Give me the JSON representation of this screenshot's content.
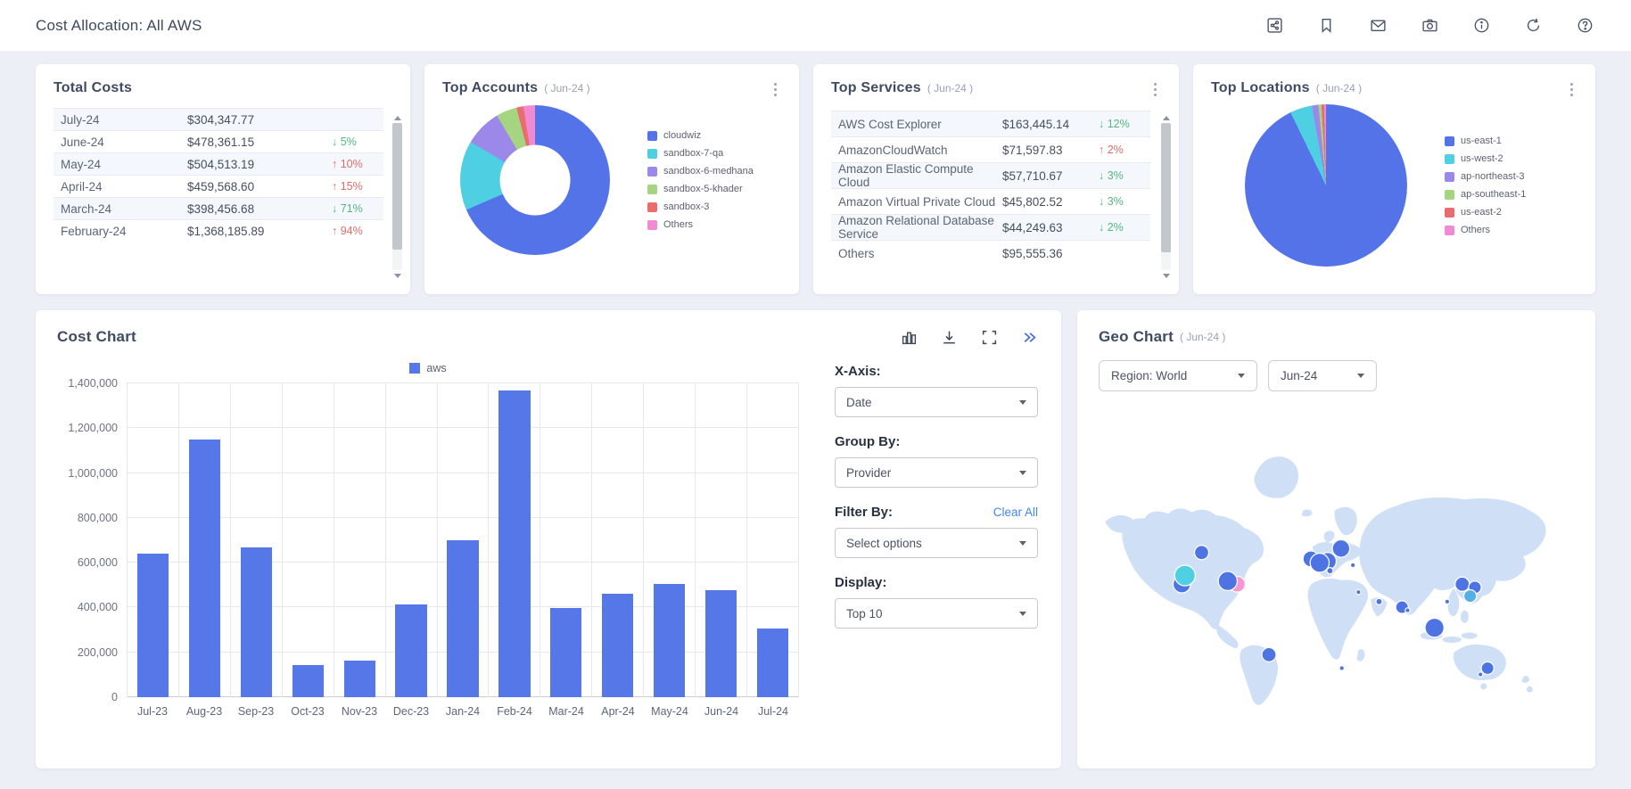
{
  "header": {
    "title": "Cost Allocation: All AWS",
    "icons": [
      "share",
      "bookmark",
      "mail",
      "camera",
      "info",
      "refresh",
      "help"
    ]
  },
  "total_costs": {
    "title": "Total Costs",
    "rows": [
      {
        "month": "July-24",
        "amount": "$304,347.77",
        "change": "",
        "dir": "none"
      },
      {
        "month": "June-24",
        "amount": "$478,361.15",
        "change": "↓ 5%",
        "dir": "down"
      },
      {
        "month": "May-24",
        "amount": "$504,513.19",
        "change": "↑ 10%",
        "dir": "up"
      },
      {
        "month": "April-24",
        "amount": "$459,568.60",
        "change": "↑ 15%",
        "dir": "up"
      },
      {
        "month": "March-24",
        "amount": "$398,456.68",
        "change": "↓ 71%",
        "dir": "down"
      },
      {
        "month": "February-24",
        "amount": "$1,368,185.89",
        "change": "↑ 94%",
        "dir": "up"
      }
    ]
  },
  "top_accounts": {
    "title": "Top Accounts",
    "period": "( Jun-24 )"
  },
  "top_services": {
    "title": "Top Services",
    "period": "( Jun-24 )",
    "rows": [
      {
        "name": "AWS Cost Explorer",
        "amount": "$163,445.14",
        "change": "↓ 12%",
        "dir": "down"
      },
      {
        "name": "AmazonCloudWatch",
        "amount": "$71,597.83",
        "change": "↑ 2%",
        "dir": "up"
      },
      {
        "name": "Amazon Elastic Compute Cloud",
        "amount": "$57,710.67",
        "change": "↓ 3%",
        "dir": "down"
      },
      {
        "name": "Amazon Virtual Private Cloud",
        "amount": "$45,802.52",
        "change": "↓ 3%",
        "dir": "down"
      },
      {
        "name": "Amazon Relational Database Service",
        "amount": "$44,249.63",
        "change": "↓ 2%",
        "dir": "down"
      },
      {
        "name": "Others",
        "amount": "$95,555.36",
        "change": "",
        "dir": "none"
      }
    ]
  },
  "top_locations": {
    "title": "Top Locations",
    "period": "( Jun-24 )"
  },
  "cost_chart": {
    "title": "Cost Chart",
    "legend": "aws",
    "toolbar_icons": [
      "bar-chart",
      "download",
      "fullscreen",
      "double-chevron-right"
    ],
    "controls": {
      "x_axis_label": "X-Axis:",
      "x_axis_value": "Date",
      "group_by_label": "Group By:",
      "group_by_value": "Provider",
      "filter_by_label": "Filter By:",
      "clear_all": "Clear All",
      "filter_value": "Select options",
      "display_label": "Display:",
      "display_value": "Top 10"
    }
  },
  "geo_chart": {
    "title": "Geo Chart",
    "period": "( Jun-24 )",
    "region_select": "Region: World",
    "month_select": "Jun-24"
  },
  "colors": {
    "accent_blue": "#5577e8",
    "up_red": "#e06c6c",
    "down_green": "#56b782",
    "link_blue": "#4285f4",
    "map_land": "#cfdff6"
  },
  "chart_data": [
    {
      "id": "top_accounts_donut",
      "type": "pie",
      "donut": true,
      "title": "Top Accounts ( Jun-24 )",
      "labels": [
        "cloudwiz",
        "sandbox-7-qa",
        "sandbox-6-medhana",
        "sandbox-5-khader",
        "sandbox-3",
        "Others"
      ],
      "values": [
        68.5,
        15,
        8,
        4.5,
        1.5,
        2.5
      ],
      "colors": [
        "#5573e8",
        "#4fd0e2",
        "#9c88e8",
        "#a5d581",
        "#e96d6d",
        "#f08ad2"
      ],
      "legend_position": "right",
      "note": "values are percentages estimated from slice angles"
    },
    {
      "id": "top_locations_pie",
      "type": "pie",
      "donut": false,
      "title": "Top Locations ( Jun-24 )",
      "labels": [
        "us-east-1",
        "us-west-2",
        "ap-northeast-3",
        "ap-southeast-1",
        "us-east-2",
        "Others"
      ],
      "values": [
        92.8,
        4.4,
        1.3,
        0.6,
        0.5,
        0.4
      ],
      "colors": [
        "#5573e8",
        "#4fd0e2",
        "#9c88e8",
        "#a5d581",
        "#e96d6d",
        "#f08ad2"
      ],
      "legend_position": "right",
      "note": "values are percentages estimated from slice angles"
    },
    {
      "id": "cost_bar",
      "type": "bar",
      "title": "Cost Chart",
      "categories": [
        "Jul-23",
        "Aug-23",
        "Sep-23",
        "Oct-23",
        "Nov-23",
        "Dec-23",
        "Jan-24",
        "Feb-24",
        "Mar-24",
        "Apr-24",
        "May-24",
        "Jun-24",
        "Jul-24"
      ],
      "series": [
        {
          "name": "aws",
          "values": [
            640000,
            1150000,
            670000,
            145000,
            165000,
            415000,
            700000,
            1368186,
            398457,
            459569,
            504513,
            478361,
            304348
          ]
        }
      ],
      "bar_color": "#5577e8",
      "ylim": [
        0,
        1400000
      ],
      "ytick_step": 200000,
      "grid": true,
      "legend_position": "top"
    },
    {
      "id": "geo_bubbles",
      "type": "scatter",
      "title": "Geo Chart ( Jun-24 )",
      "note": "cost bubbles on world map; x,y in 600x390 map coords, r = bubble radius",
      "points": [
        {
          "x": 130,
          "y": 157,
          "r": 9,
          "c": "#4e74e3"
        },
        {
          "x": 105,
          "y": 197,
          "r": 11,
          "c": "#4e74e3"
        },
        {
          "x": 109,
          "y": 186,
          "r": 13,
          "c": "#4fd0e2"
        },
        {
          "x": 175,
          "y": 197,
          "r": 10,
          "c": "#f597d5"
        },
        {
          "x": 163,
          "y": 193,
          "r": 12,
          "c": "#4e74e3"
        },
        {
          "x": 268,
          "y": 165,
          "r": 10,
          "c": "#4e74e3"
        },
        {
          "x": 289,
          "y": 168,
          "r": 11,
          "c": "#4e74e3"
        },
        {
          "x": 279,
          "y": 170,
          "r": 12,
          "c": "#4e74e3"
        },
        {
          "x": 306,
          "y": 152,
          "r": 11,
          "c": "#4e74e3"
        },
        {
          "x": 292,
          "y": 180,
          "r": 4,
          "c": "#4e74e3"
        },
        {
          "x": 321,
          "y": 173,
          "r": 3,
          "c": "#4e74e3"
        },
        {
          "x": 328,
          "y": 207,
          "r": 3,
          "c": "#4e74e3"
        },
        {
          "x": 354,
          "y": 219,
          "r": 4,
          "c": "#4e74e3"
        },
        {
          "x": 383,
          "y": 226,
          "r": 8,
          "c": "#4e74e3"
        },
        {
          "x": 390,
          "y": 230,
          "r": 3,
          "c": "#4e74e3"
        },
        {
          "x": 440,
          "y": 219,
          "r": 3,
          "c": "#4e74e3"
        },
        {
          "x": 459,
          "y": 197,
          "r": 9,
          "c": "#4e74e3"
        },
        {
          "x": 475,
          "y": 201,
          "r": 8,
          "c": "#4e74e3"
        },
        {
          "x": 469,
          "y": 212,
          "r": 8,
          "c": "#55aee4"
        },
        {
          "x": 424,
          "y": 252,
          "r": 12,
          "c": "#4e74e3"
        },
        {
          "x": 215,
          "y": 286,
          "r": 9,
          "c": "#4e74e3"
        },
        {
          "x": 307,
          "y": 303,
          "r": 3,
          "c": "#4e74e3"
        },
        {
          "x": 491,
          "y": 303,
          "r": 8,
          "c": "#4e74e3"
        },
        {
          "x": 482,
          "y": 311,
          "r": 3,
          "c": "#4e74e3"
        }
      ]
    }
  ]
}
